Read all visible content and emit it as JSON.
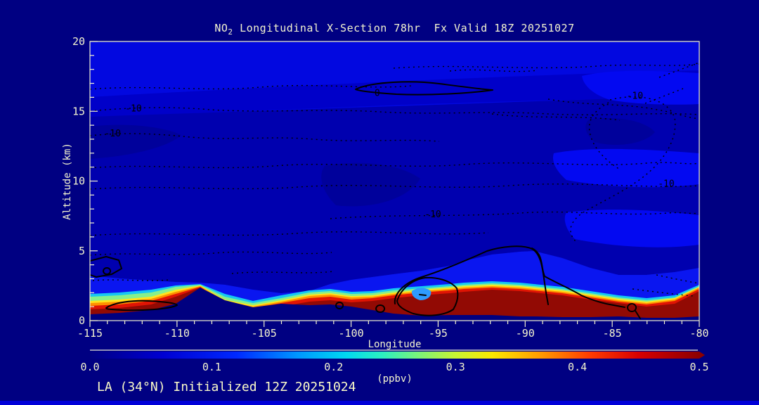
{
  "window": {
    "background": "#000082",
    "footer_strip_color": "#0000d8",
    "text_color": "#f4f4cf"
  },
  "title": {
    "prefix": "NO",
    "sub": "2",
    "rest": " Longitudinal X-Section 78hr  Fx Valid 18Z 20251027"
  },
  "footer": {
    "text": "LA (34°N) Initialized 12Z 20251024"
  },
  "axes": {
    "x": {
      "label": "Longitude",
      "range": [
        -115,
        -80
      ],
      "major_ticks": [
        -115,
        -110,
        -105,
        -100,
        -95,
        -90,
        -85,
        -80
      ],
      "minor_step": 1
    },
    "y": {
      "label": "Altitude (km)",
      "range": [
        0,
        20
      ],
      "major_ticks": [
        0,
        5,
        10,
        15,
        20
      ],
      "minor_step": 1
    }
  },
  "colorbar": {
    "label": "(ppbv)",
    "tick_labels": [
      "0.0",
      "0.1",
      "0.2",
      "0.3",
      "0.4",
      "0.5"
    ],
    "min": 0,
    "max": 0.5,
    "stops": [
      [
        0,
        "#000084"
      ],
      [
        0.12,
        "#0000d2"
      ],
      [
        0.24,
        "#0028ff"
      ],
      [
        0.34,
        "#0096ff"
      ],
      [
        0.42,
        "#00d8f0"
      ],
      [
        0.48,
        "#2cf0c0"
      ],
      [
        0.54,
        "#7cf478"
      ],
      [
        0.6,
        "#c8f432"
      ],
      [
        0.66,
        "#fce800"
      ],
      [
        0.74,
        "#ff9a00"
      ],
      [
        0.82,
        "#ff3c00"
      ],
      [
        0.9,
        "#d80000"
      ],
      [
        1,
        "#8c0000"
      ]
    ]
  },
  "contour_labels": [
    {
      "text": "-10",
      "lon": -112.5,
      "km": 15.2
    },
    {
      "text": "-10",
      "lon": -113.7,
      "km": 13.4
    },
    {
      "text": "0",
      "lon": -98.5,
      "km": 16.3
    },
    {
      "text": "-10",
      "lon": -83.7,
      "km": 16.1
    },
    {
      "text": "-10",
      "lon": -81.9,
      "km": 9.8
    },
    {
      "text": "-10",
      "lon": -95.3,
      "km": 7.6
    }
  ],
  "chart_data": {
    "type": "heatmap",
    "title": "NO2 Longitudinal X-Section 78hr  Fx Valid 18Z 20251027",
    "subtitle": "LA (34°N) Initialized 12Z 20251024",
    "species": "NO2",
    "cross_section_latitude": "34N",
    "forecast_hour": 78,
    "valid_time": "18Z 20251027",
    "initialized_time": "12Z 20251024",
    "xlabel": "Longitude",
    "ylabel": "Altitude (km)",
    "xlim": [
      -115,
      -80
    ],
    "ylim": [
      0,
      20
    ],
    "x_ticks": [
      -115,
      -110,
      -105,
      -100,
      -95,
      -90,
      -85,
      -80
    ],
    "y_ticks": [
      0,
      5,
      10,
      15,
      20
    ],
    "value_units": "ppbv",
    "value_range": [
      0,
      0.5
    ],
    "colorbar_ticks": [
      0.0,
      0.1,
      0.2,
      0.3,
      0.4,
      0.5
    ],
    "overlay_contour_labels": [
      -10,
      0
    ],
    "lon_anchors": [
      -115,
      -113,
      -111,
      -109.5,
      -108.6,
      -107.2,
      -105.5,
      -103.5,
      -102,
      -101,
      -100,
      -98.5,
      -97,
      -95.5,
      -93.5,
      -92,
      -89.5,
      -87,
      -85,
      -83,
      -81,
      -80
    ],
    "terrain_top_km": [
      0.45,
      0.55,
      0.75,
      1.2,
      2.37,
      1.45,
      0.95,
      1.2,
      1.1,
      1.15,
      1.0,
      0.75,
      0.5,
      0.35,
      0.4,
      0.4,
      0.3,
      0.25,
      0.3,
      0.2,
      0.2,
      0.3
    ],
    "surface_no2_ppbv": [
      0.5,
      0.5,
      0.5,
      0.35,
      0.2,
      0.3,
      0.45,
      0.5,
      0.5,
      0.5,
      0.5,
      0.5,
      0.5,
      0.5,
      0.5,
      0.5,
      0.5,
      0.5,
      0.5,
      0.5,
      0.5,
      0.5
    ],
    "notes": "NO2 >= 0.5 ppbv (dark red) confined to lowest ~1 km along most of the section; 0.05-0.15 ppbv (dark blue shades) through the free troposphere up to 20 km; elevated terrain near longitude -108.5 reaches ~2.3 km with a cleaner (cyan) cap; black solid contours (0) and dotted contours (-10) overlaid."
  }
}
